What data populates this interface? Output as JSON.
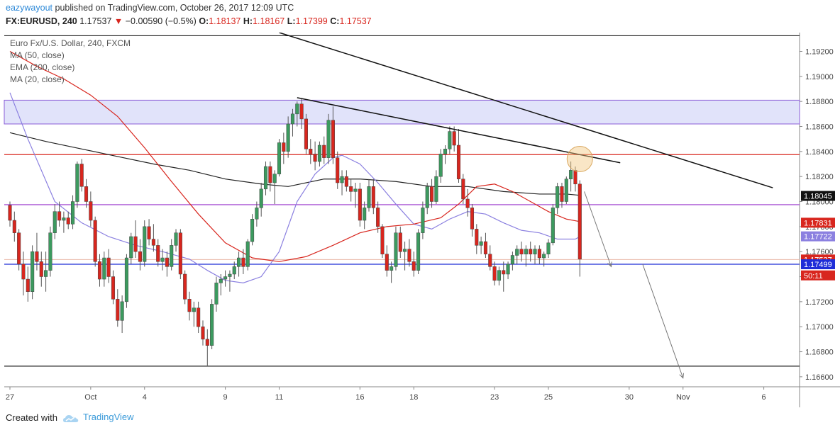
{
  "header": {
    "username": "eazywayout",
    "published_text": "published on TradingView.com, October 26, 2017 12:09 UTC",
    "symbol": "FX:EURUSD, 240",
    "last": "1.17537",
    "change_arrow": "▼",
    "change": "−0.00590 (−0.5%)",
    "open_label": "O:",
    "open": "1.18137",
    "high_label": "H:",
    "high": "1.18167",
    "low_label": "L:",
    "low": "1.17399",
    "close_label": "C:",
    "close": "1.17537"
  },
  "legend": {
    "title": "Euro Fx/U.S. Dollar, 240, FXCM",
    "ma50": "MA (50, close)",
    "ema200": "EMA (200, close)",
    "ma20": "MA (20, close)"
  },
  "footer": {
    "created_with": "Created with",
    "brand": "TradingView",
    "logo_icon": "tradingview-cloud-icon"
  },
  "colors": {
    "up": "#3c9a5f",
    "down": "#d8261e",
    "ma50": "#d8261e",
    "ema200": "#222222",
    "ma20": "#8b80e0",
    "support": "#1e2dd8",
    "zone": "#c9ccf5"
  },
  "chart_data": {
    "type": "candlestick",
    "y_range": [
      1.1652,
      1.1935
    ],
    "y_ticks": [
      "1.19200",
      "1.19000",
      "1.18800",
      "1.18600",
      "1.18400",
      "1.18200",
      "1.18000",
      "1.17800",
      "1.17600",
      "1.17400",
      "1.17200",
      "1.17000",
      "1.16800",
      "1.16600"
    ],
    "x_ticks": [
      {
        "label": "27",
        "i": 0
      },
      {
        "label": "Oct",
        "i": 18
      },
      {
        "label": "4",
        "i": 30
      },
      {
        "label": "9",
        "i": 48
      },
      {
        "label": "11",
        "i": 60
      },
      {
        "label": "16",
        "i": 78
      },
      {
        "label": "18",
        "i": 90
      },
      {
        "label": "23",
        "i": 108
      },
      {
        "label": "25",
        "i": 120
      },
      {
        "label": "30",
        "i": 138
      },
      {
        "label": "Nov",
        "i": 150
      },
      {
        "label": "6",
        "i": 168
      }
    ],
    "price_labels": [
      {
        "text": "1.18045",
        "value": 1.18045,
        "bg": "#111111",
        "fg": "#ffffff"
      },
      {
        "text": "1.17831",
        "value": 1.17831,
        "bg": "#d8261e",
        "fg": "#ffffff"
      },
      {
        "text": "1.17722",
        "value": 1.17722,
        "bg": "#8b80e0",
        "fg": "#ffffff"
      },
      {
        "text": "1.17537",
        "value": 1.17537,
        "bg": "#d8261e",
        "fg": "#ffffff"
      },
      {
        "text": "50:11",
        "value": 1.1741,
        "bg": "#d8261e",
        "fg": "#ffffff"
      },
      {
        "text": "1.17499",
        "value": 1.17499,
        "bg": "#1e2dd8",
        "fg": "#ffffff"
      }
    ],
    "horizontal_lines": [
      {
        "value": 1.19325,
        "color": "#222222"
      },
      {
        "value": 1.18375,
        "color": "#d8261e"
      },
      {
        "value": 1.17975,
        "color": "#9933cc"
      },
      {
        "value": 1.17499,
        "color": "#1e2dd8"
      },
      {
        "value": 1.16685,
        "color": "#222222"
      }
    ],
    "zone": {
      "top": 1.1881,
      "bottom": 1.1862
    },
    "trendlines": [
      {
        "x1": 60,
        "y1": 1.1935,
        "x2": 170,
        "y2": 1.1811,
        "color": "#111111"
      },
      {
        "x1": 64,
        "y1": 1.1883,
        "x2": 136,
        "y2": 1.1831,
        "color": "#111111"
      }
    ],
    "projection_arrows": [
      {
        "x1": 128,
        "y1": 1.1808,
        "x2": 134,
        "y2": 1.1748
      },
      {
        "x1": 141,
        "y1": 1.175,
        "x2": 150,
        "y2": 1.1659
      }
    ],
    "circle": {
      "i": 127,
      "value": 1.1834
    },
    "candles": [
      [
        1.1797,
        1.18,
        1.178,
        1.1785
      ],
      [
        1.1785,
        1.1792,
        1.1768,
        1.1775
      ],
      [
        1.1775,
        1.1778,
        1.1745,
        1.175
      ],
      [
        1.175,
        1.176,
        1.1725,
        1.1738
      ],
      [
        1.1738,
        1.1748,
        1.172,
        1.1728
      ],
      [
        1.1728,
        1.1765,
        1.1722,
        1.176
      ],
      [
        1.176,
        1.1775,
        1.1745,
        1.1752
      ],
      [
        1.1752,
        1.176,
        1.1732,
        1.174
      ],
      [
        1.174,
        1.176,
        1.1728,
        1.1745
      ],
      [
        1.1745,
        1.178,
        1.174,
        1.1775
      ],
      [
        1.1775,
        1.1798,
        1.177,
        1.1792
      ],
      [
        1.1792,
        1.18,
        1.178,
        1.1785
      ],
      [
        1.1785,
        1.1792,
        1.1775,
        1.1787
      ],
      [
        1.1787,
        1.1792,
        1.1778,
        1.1782
      ],
      [
        1.1782,
        1.1805,
        1.1778,
        1.18
      ],
      [
        1.18,
        1.1832,
        1.1795,
        1.183
      ],
      [
        1.183,
        1.1834,
        1.1808,
        1.1812
      ],
      [
        1.1812,
        1.1818,
        1.1795,
        1.18
      ],
      [
        1.18,
        1.1808,
        1.178,
        1.1785
      ],
      [
        1.1785,
        1.1788,
        1.1748,
        1.1752
      ],
      [
        1.1752,
        1.1758,
        1.1732,
        1.1738
      ],
      [
        1.1738,
        1.176,
        1.1732,
        1.1755
      ],
      [
        1.1755,
        1.1762,
        1.1735,
        1.174
      ],
      [
        1.174,
        1.1745,
        1.1718,
        1.1722
      ],
      [
        1.1722,
        1.173,
        1.17,
        1.1705
      ],
      [
        1.1705,
        1.1725,
        1.1695,
        1.172
      ],
      [
        1.172,
        1.1758,
        1.1715,
        1.1755
      ],
      [
        1.1755,
        1.1775,
        1.175,
        1.1772
      ],
      [
        1.1772,
        1.1785,
        1.1755,
        1.176
      ],
      [
        1.176,
        1.177,
        1.1745,
        1.1752
      ],
      [
        1.1752,
        1.1785,
        1.1748,
        1.178
      ],
      [
        1.178,
        1.1786,
        1.1765,
        1.177
      ],
      [
        1.177,
        1.1782,
        1.176,
        1.1765
      ],
      [
        1.1765,
        1.177,
        1.1748,
        1.1752
      ],
      [
        1.1752,
        1.1762,
        1.1745,
        1.1755
      ],
      [
        1.1755,
        1.176,
        1.174,
        1.1748
      ],
      [
        1.1748,
        1.177,
        1.1745,
        1.1765
      ],
      [
        1.1765,
        1.1778,
        1.176,
        1.1775
      ],
      [
        1.1775,
        1.1778,
        1.1738,
        1.1742
      ],
      [
        1.1742,
        1.1745,
        1.1718,
        1.1722
      ],
      [
        1.1722,
        1.1728,
        1.1705,
        1.1712
      ],
      [
        1.1712,
        1.172,
        1.17,
        1.1715
      ],
      [
        1.1715,
        1.172,
        1.1695,
        1.17
      ],
      [
        1.17,
        1.1705,
        1.1685,
        1.169
      ],
      [
        1.169,
        1.1698,
        1.1669,
        1.1685
      ],
      [
        1.1685,
        1.1722,
        1.1682,
        1.1718
      ],
      [
        1.1718,
        1.174,
        1.1712,
        1.1735
      ],
      [
        1.1735,
        1.1742,
        1.1725,
        1.1738
      ],
      [
        1.1738,
        1.1745,
        1.1732,
        1.174
      ],
      [
        1.174,
        1.1745,
        1.1728,
        1.1742
      ],
      [
        1.1742,
        1.1752,
        1.1738,
        1.1748
      ],
      [
        1.1748,
        1.176,
        1.174,
        1.1755
      ],
      [
        1.1755,
        1.1762,
        1.1742,
        1.1748
      ],
      [
        1.1748,
        1.177,
        1.1745,
        1.1768
      ],
      [
        1.1768,
        1.179,
        1.1765,
        1.1786
      ],
      [
        1.1786,
        1.18,
        1.178,
        1.1795
      ],
      [
        1.1795,
        1.1815,
        1.1788,
        1.181
      ],
      [
        1.181,
        1.1832,
        1.1805,
        1.1828
      ],
      [
        1.1828,
        1.1832,
        1.1808,
        1.1815
      ],
      [
        1.1815,
        1.1825,
        1.1798,
        1.1822
      ],
      [
        1.1822,
        1.185,
        1.182,
        1.1847
      ],
      [
        1.1847,
        1.1855,
        1.183,
        1.184
      ],
      [
        1.184,
        1.1868,
        1.1835,
        1.1862
      ],
      [
        1.1862,
        1.1874,
        1.1852,
        1.187
      ],
      [
        1.187,
        1.188,
        1.186,
        1.1878
      ],
      [
        1.1878,
        1.1882,
        1.1858,
        1.1866
      ],
      [
        1.1866,
        1.187,
        1.1838,
        1.1842
      ],
      [
        1.1842,
        1.185,
        1.183,
        1.1838
      ],
      [
        1.1838,
        1.1848,
        1.1825,
        1.1832
      ],
      [
        1.1832,
        1.1848,
        1.1828,
        1.1845
      ],
      [
        1.1845,
        1.1852,
        1.183,
        1.1835
      ],
      [
        1.1835,
        1.187,
        1.183,
        1.1865
      ],
      [
        1.1865,
        1.1876,
        1.183,
        1.1835
      ],
      [
        1.1835,
        1.184,
        1.181,
        1.1815
      ],
      [
        1.1815,
        1.1825,
        1.1805,
        1.182
      ],
      [
        1.182,
        1.1825,
        1.1808,
        1.1812
      ],
      [
        1.1812,
        1.1818,
        1.18,
        1.1808
      ],
      [
        1.1808,
        1.1815,
        1.1795,
        1.181
      ],
      [
        1.181,
        1.1815,
        1.178,
        1.1785
      ],
      [
        1.1785,
        1.18,
        1.1778,
        1.1795
      ],
      [
        1.1795,
        1.1818,
        1.1792,
        1.1812
      ],
      [
        1.1812,
        1.1818,
        1.179,
        1.1795
      ],
      [
        1.1795,
        1.18,
        1.1775,
        1.178
      ],
      [
        1.178,
        1.1782,
        1.1755,
        1.1758
      ],
      [
        1.1758,
        1.1765,
        1.174,
        1.1745
      ],
      [
        1.1745,
        1.1752,
        1.1735,
        1.1748
      ],
      [
        1.1748,
        1.178,
        1.1745,
        1.1775
      ],
      [
        1.1775,
        1.178,
        1.1755,
        1.176
      ],
      [
        1.176,
        1.1768,
        1.1745,
        1.1762
      ],
      [
        1.1762,
        1.177,
        1.1748,
        1.1752
      ],
      [
        1.1752,
        1.176,
        1.174,
        1.1745
      ],
      [
        1.1745,
        1.1778,
        1.1742,
        1.1775
      ],
      [
        1.1775,
        1.18,
        1.177,
        1.1795
      ],
      [
        1.1795,
        1.1815,
        1.179,
        1.1812
      ],
      [
        1.1812,
        1.1818,
        1.1795,
        1.18
      ],
      [
        1.18,
        1.1825,
        1.1798,
        1.182
      ],
      [
        1.182,
        1.1842,
        1.1815,
        1.1838
      ],
      [
        1.1838,
        1.1845,
        1.183,
        1.1842
      ],
      [
        1.1842,
        1.186,
        1.1838,
        1.1856
      ],
      [
        1.1856,
        1.186,
        1.184,
        1.1845
      ],
      [
        1.1845,
        1.1858,
        1.1815,
        1.1818
      ],
      [
        1.1818,
        1.1822,
        1.1798,
        1.1802
      ],
      [
        1.1802,
        1.181,
        1.1788,
        1.1795
      ],
      [
        1.1795,
        1.1798,
        1.1772,
        1.1778
      ],
      [
        1.1778,
        1.1782,
        1.1758,
        1.1765
      ],
      [
        1.1765,
        1.1772,
        1.1758,
        1.1768
      ],
      [
        1.1768,
        1.1775,
        1.1755,
        1.1758
      ],
      [
        1.1758,
        1.1765,
        1.1745,
        1.1748
      ],
      [
        1.1748,
        1.1752,
        1.1733,
        1.1737
      ],
      [
        1.1737,
        1.1748,
        1.1733,
        1.1745
      ],
      [
        1.1745,
        1.1752,
        1.1728,
        1.1742
      ],
      [
        1.1742,
        1.1752,
        1.1738,
        1.175
      ],
      [
        1.175,
        1.176,
        1.1745,
        1.1757
      ],
      [
        1.1757,
        1.1765,
        1.175,
        1.1762
      ],
      [
        1.1762,
        1.1768,
        1.1752,
        1.1758
      ],
      [
        1.1758,
        1.1765,
        1.1748,
        1.1762
      ],
      [
        1.1762,
        1.1768,
        1.1752,
        1.1758
      ],
      [
        1.1758,
        1.1765,
        1.175,
        1.1762
      ],
      [
        1.1762,
        1.1765,
        1.175,
        1.1755
      ],
      [
        1.1755,
        1.176,
        1.1748,
        1.1758
      ],
      [
        1.1758,
        1.177,
        1.1755,
        1.1767
      ],
      [
        1.1767,
        1.1798,
        1.1765,
        1.1795
      ],
      [
        1.1795,
        1.1815,
        1.179,
        1.1812
      ],
      [
        1.1812,
        1.1815,
        1.1795,
        1.18
      ],
      [
        1.18,
        1.182,
        1.1798,
        1.1818
      ],
      [
        1.1818,
        1.1832,
        1.1808,
        1.1825
      ],
      [
        1.1825,
        1.1828,
        1.1808,
        1.1814
      ],
      [
        1.1814,
        1.1817,
        1.174,
        1.1754
      ]
    ],
    "ma50": [
      [
        0,
        1.192
      ],
      [
        6,
        1.1908
      ],
      [
        12,
        1.1898
      ],
      [
        18,
        1.1885
      ],
      [
        24,
        1.1868
      ],
      [
        30,
        1.1843
      ],
      [
        36,
        1.1816
      ],
      [
        42,
        1.179
      ],
      [
        48,
        1.1767
      ],
      [
        54,
        1.1755
      ],
      [
        60,
        1.1752
      ],
      [
        66,
        1.1756
      ],
      [
        72,
        1.1765
      ],
      [
        78,
        1.1775
      ],
      [
        84,
        1.178
      ],
      [
        90,
        1.1782
      ],
      [
        96,
        1.1787
      ],
      [
        100,
        1.1798
      ],
      [
        104,
        1.1812
      ],
      [
        108,
        1.1814
      ],
      [
        112,
        1.1808
      ],
      [
        116,
        1.18
      ],
      [
        120,
        1.1792
      ],
      [
        124,
        1.1786
      ],
      [
        127,
        1.1784
      ]
    ],
    "ema200": [
      [
        0,
        1.1855
      ],
      [
        8,
        1.1848
      ],
      [
        16,
        1.1842
      ],
      [
        24,
        1.1836
      ],
      [
        32,
        1.183
      ],
      [
        40,
        1.1825
      ],
      [
        48,
        1.1818
      ],
      [
        56,
        1.1814
      ],
      [
        62,
        1.1812
      ],
      [
        70,
        1.1818
      ],
      [
        78,
        1.1818
      ],
      [
        86,
        1.1816
      ],
      [
        94,
        1.1812
      ],
      [
        102,
        1.1812
      ],
      [
        110,
        1.1808
      ],
      [
        118,
        1.1806
      ],
      [
        124,
        1.1806
      ],
      [
        127,
        1.1805
      ]
    ],
    "ma20": [
      [
        0,
        1.1887
      ],
      [
        4,
        1.185
      ],
      [
        10,
        1.18
      ],
      [
        16,
        1.1783
      ],
      [
        22,
        1.1772
      ],
      [
        28,
        1.1765
      ],
      [
        34,
        1.176
      ],
      [
        40,
        1.1754
      ],
      [
        44,
        1.1745
      ],
      [
        48,
        1.1737
      ],
      [
        52,
        1.1735
      ],
      [
        56,
        1.174
      ],
      [
        60,
        1.176
      ],
      [
        64,
        1.18
      ],
      [
        68,
        1.1822
      ],
      [
        72,
        1.1835
      ],
      [
        74,
        1.1837
      ],
      [
        78,
        1.183
      ],
      [
        82,
        1.1815
      ],
      [
        86,
        1.1798
      ],
      [
        90,
        1.1782
      ],
      [
        94,
        1.1778
      ],
      [
        98,
        1.1786
      ],
      [
        102,
        1.1792
      ],
      [
        106,
        1.179
      ],
      [
        110,
        1.1783
      ],
      [
        114,
        1.1777
      ],
      [
        118,
        1.1775
      ],
      [
        122,
        1.177
      ],
      [
        126,
        1.177
      ],
      [
        127,
        1.1772
      ]
    ]
  }
}
